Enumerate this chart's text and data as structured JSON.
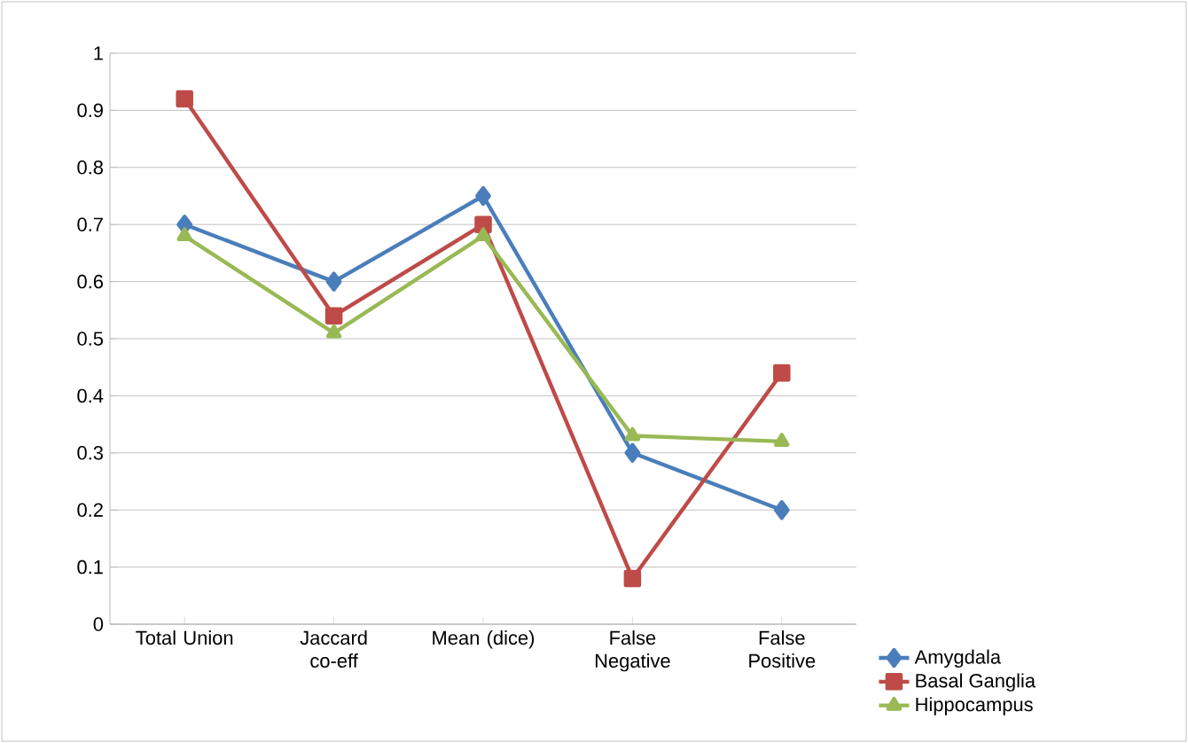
{
  "chart_data": {
    "type": "line",
    "categories": [
      "Total Union",
      "Jaccard co-eff",
      "Mean (dice)",
      "False Negative",
      "False Positive"
    ],
    "series": [
      {
        "name": "Amygdala",
        "color": "#4a7ebb",
        "marker": "diamond",
        "values": [
          0.7,
          0.6,
          0.75,
          0.3,
          0.2
        ]
      },
      {
        "name": "Basal Ganglia",
        "color": "#be4b48",
        "marker": "square",
        "values": [
          0.92,
          0.54,
          0.7,
          0.08,
          0.44
        ]
      },
      {
        "name": "Hippocampus",
        "color": "#98b954",
        "marker": "triangle",
        "values": [
          0.68,
          0.51,
          0.68,
          0.33,
          0.32
        ]
      }
    ],
    "ylim": [
      0,
      1
    ],
    "yticks": [
      0,
      0.1,
      0.2,
      0.3,
      0.4,
      0.5,
      0.6,
      0.7,
      0.8,
      0.9,
      1
    ],
    "grid": "y",
    "legend": "right",
    "line_style": "solid"
  }
}
